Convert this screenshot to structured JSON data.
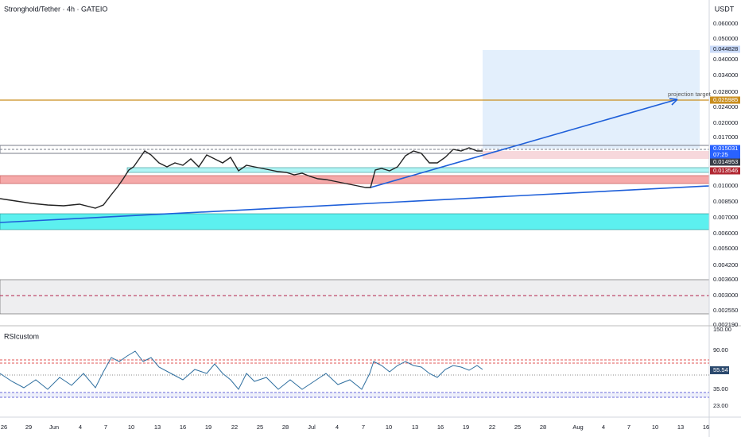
{
  "header": {
    "title": "Stronghold/Tether · 4h · GATEIO",
    "currency": "USDT"
  },
  "price_axis": {
    "labels": [
      "0.060000",
      "0.050000",
      "0.040000",
      "0.034000",
      "0.028000",
      "0.024000",
      "0.020000",
      "0.017000",
      "0.010000",
      "0.008500",
      "0.007000",
      "0.006000",
      "0.005000",
      "0.004200",
      "0.003600",
      "0.003000",
      "0.002550",
      "0.002190"
    ],
    "tags": [
      "0.044828",
      "0.025985",
      "0.015031",
      "07:25",
      "0.014953",
      "0.013546"
    ]
  },
  "annotation": "projection target",
  "rsi_panel": {
    "title": "RSIcustom",
    "labels": [
      "150.00",
      "90.00",
      "35.00",
      "23.00"
    ],
    "tag": "55.54"
  },
  "time_axis": {
    "labels": [
      "26",
      "29",
      "Jun",
      "4",
      "7",
      "10",
      "13",
      "16",
      "19",
      "22",
      "25",
      "28",
      "Jul",
      "4",
      "7",
      "10",
      "13",
      "16",
      "19",
      "22",
      "25",
      "28",
      "Aug",
      "4",
      "7",
      "10",
      "13",
      "16"
    ]
  }
}
